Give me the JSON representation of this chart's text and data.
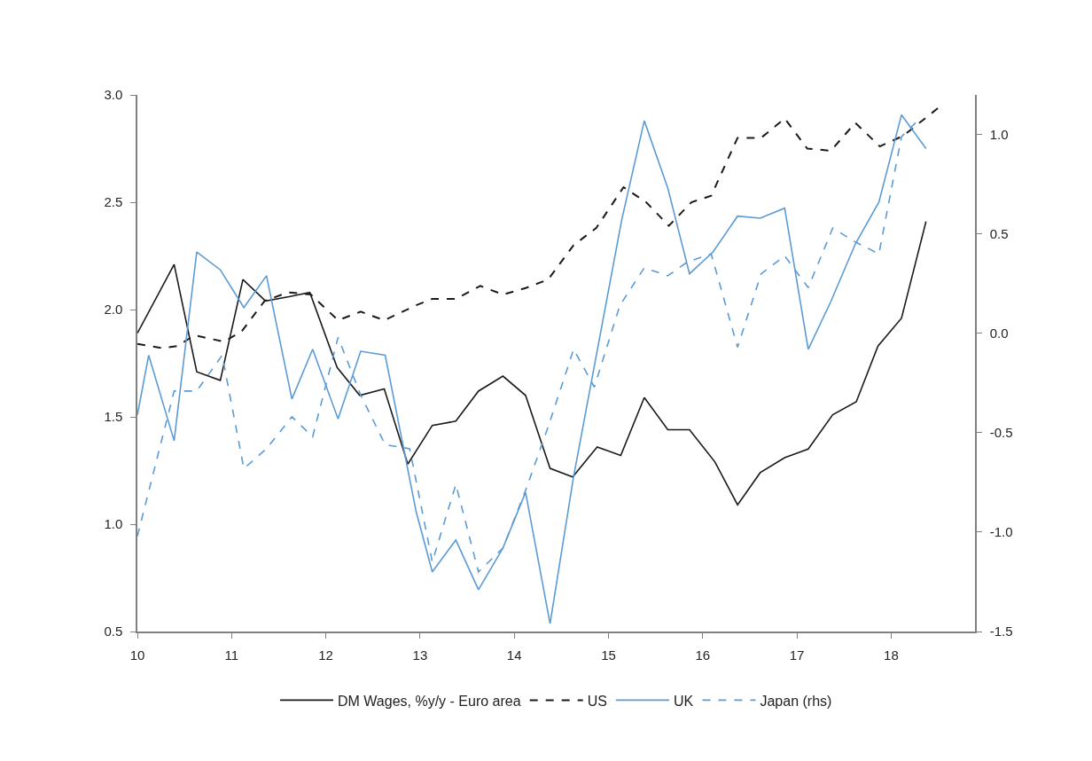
{
  "chart_data": {
    "type": "line",
    "xlim": [
      10,
      18.89
    ],
    "xticks": [
      10,
      11,
      12,
      13,
      14,
      15,
      16,
      17,
      18
    ],
    "ylim": [
      0.5,
      3.0
    ],
    "yticks": [
      0.5,
      {
        "value": 1.0,
        "label": "1.0"
      },
      1.5,
      {
        "value": 2.0,
        "label": "2.0"
      },
      2.5,
      {
        "value": 3.0,
        "label": "3.0"
      }
    ],
    "y2lim": [
      -1.5,
      1.2
    ],
    "y2ticks": [
      -1.5,
      {
        "value": -1.0,
        "label": "-1.0"
      },
      -0.5,
      {
        "value": 0.0,
        "label": "0.0"
      },
      0.5,
      {
        "value": 1.0,
        "label": "1.0"
      }
    ],
    "legend": "bottom",
    "marker": "none",
    "series": [
      {
        "name": "DM Wages, %y/y - Euro area",
        "color": "#1a1a1a",
        "line_style": "solid",
        "x": [
          10.0,
          10.39,
          10.63,
          10.88,
          11.12,
          11.36,
          11.61,
          11.83,
          12.12,
          12.36,
          12.62,
          12.87,
          13.13,
          13.38,
          13.62,
          13.88,
          14.12,
          14.38,
          14.62,
          14.88,
          15.13,
          15.38,
          15.63,
          15.86,
          16.13,
          16.37,
          16.61,
          16.87,
          17.12,
          17.38,
          17.63,
          17.86,
          18.11,
          18.37
        ],
        "values": [
          1.89,
          2.21,
          1.71,
          1.67,
          2.14,
          2.04,
          2.06,
          2.08,
          1.73,
          1.6,
          1.63,
          1.28,
          1.46,
          1.48,
          1.62,
          1.69,
          1.6,
          1.26,
          1.22,
          1.36,
          1.32,
          1.59,
          1.44,
          1.44,
          1.29,
          1.09,
          1.24,
          1.31,
          1.35,
          1.51,
          1.57,
          1.83,
          1.96,
          2.41
        ]
      },
      {
        "name": "US",
        "color": "#1a1a1a",
        "line_style": "dashed",
        "x": [
          10.0,
          10.27,
          10.42,
          10.61,
          10.92,
          11.11,
          11.35,
          11.6,
          11.84,
          12.13,
          12.37,
          12.62,
          12.96,
          13.13,
          13.38,
          13.64,
          13.88,
          14.12,
          14.36,
          14.63,
          14.87,
          15.16,
          15.4,
          15.64,
          15.88,
          16.09,
          16.37,
          16.62,
          16.87,
          17.11,
          17.36,
          17.62,
          17.88,
          18.13,
          18.53
        ],
        "values": [
          1.84,
          1.82,
          1.83,
          1.88,
          1.85,
          1.9,
          2.04,
          2.08,
          2.07,
          1.95,
          1.99,
          1.95,
          2.02,
          2.05,
          2.05,
          2.11,
          2.07,
          2.1,
          2.14,
          2.3,
          2.38,
          2.57,
          2.5,
          2.39,
          2.5,
          2.53,
          2.8,
          2.8,
          2.89,
          2.75,
          2.74,
          2.87,
          2.76,
          2.81,
          2.95
        ]
      },
      {
        "name": "UK",
        "color": "#5b9bd5",
        "line_style": "solid",
        "axis": "y2",
        "x": [
          10.0,
          10.12,
          10.39,
          10.63,
          10.88,
          11.13,
          11.37,
          11.64,
          11.86,
          12.13,
          12.37,
          12.63,
          12.96,
          13.13,
          13.38,
          13.62,
          13.88,
          14.12,
          14.38,
          14.63,
          15.14,
          15.38,
          15.63,
          15.86,
          16.11,
          16.37,
          16.61,
          16.87,
          17.12,
          17.36,
          17.62,
          17.87,
          18.11,
          18.37
        ],
        "values": [
          -0.41,
          -0.11,
          -0.54,
          0.41,
          0.32,
          0.13,
          0.29,
          -0.33,
          -0.08,
          -0.43,
          -0.09,
          -0.11,
          -0.9,
          -1.2,
          -1.04,
          -1.29,
          -1.08,
          -0.8,
          -1.46,
          -0.72,
          0.57,
          1.07,
          0.73,
          0.3,
          0.41,
          0.59,
          0.58,
          0.63,
          -0.08,
          0.16,
          0.45,
          0.66,
          1.1,
          0.93
        ]
      },
      {
        "name": "Japan (rhs)",
        "color": "#5b9bd5",
        "line_style": "dashed",
        "axis": "y2",
        "x": [
          10.0,
          10.39,
          10.63,
          10.9,
          11.13,
          11.37,
          11.64,
          11.86,
          12.13,
          12.37,
          12.63,
          12.89,
          13.13,
          13.38,
          13.62,
          13.88,
          14.12,
          14.36,
          14.63,
          14.85,
          15.12,
          15.38,
          15.63,
          15.84,
          16.09,
          16.37,
          16.62,
          16.87,
          17.12,
          17.38,
          17.62,
          17.87,
          18.11,
          18.26
        ],
        "values": [
          -1.02,
          -0.29,
          -0.29,
          -0.11,
          -0.68,
          -0.58,
          -0.42,
          -0.52,
          -0.02,
          -0.31,
          -0.56,
          -0.58,
          -1.15,
          -0.76,
          -1.2,
          -1.08,
          -0.79,
          -0.47,
          -0.08,
          -0.27,
          0.14,
          0.33,
          0.29,
          0.36,
          0.4,
          -0.07,
          0.3,
          0.39,
          0.23,
          0.53,
          0.46,
          0.4,
          0.99,
          1.06
        ]
      }
    ]
  }
}
